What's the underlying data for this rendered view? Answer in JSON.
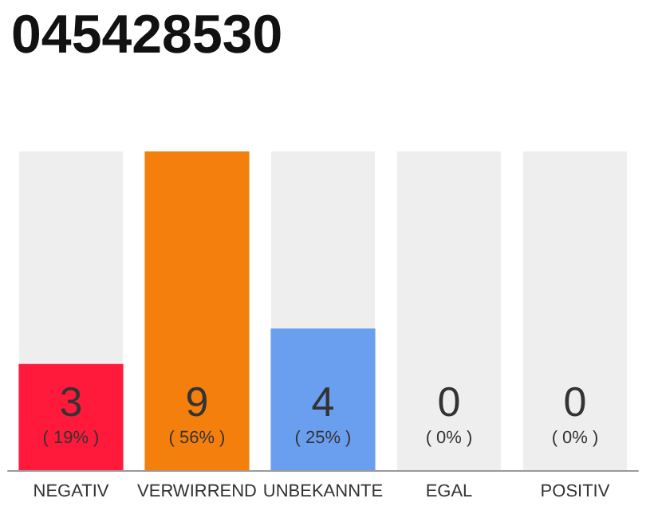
{
  "chart_data": {
    "type": "bar",
    "title": "045428530",
    "categories": [
      "NEGATIV",
      "VERWIRREND",
      "UNBEKANNTE",
      "EGAL",
      "POSITIV"
    ],
    "values": [
      3,
      9,
      4,
      0,
      0
    ],
    "colors": [
      "#ff1a3c",
      "#f57f0c",
      "#6a9ff0",
      "#bdbdbd",
      "#bdbdbd"
    ],
    "value_labels": [
      "3\n( 19% )",
      "9\n( 56% )",
      "4\n( 25% )",
      "0\n( 0% )",
      "0\n( 0% )"
    ],
    "ylim": [
      0,
      9
    ],
    "bands": [
      {
        "axis": "x",
        "from": "NEGATIV",
        "to": "NEGATIV",
        "color": "#eeeeee"
      },
      {
        "axis": "x",
        "from": "UNBEKANNTE",
        "to": "UNBEKANNTE",
        "color": "#eeeeee"
      },
      {
        "axis": "x",
        "from": "EGAL",
        "to": "EGAL",
        "color": "#eeeeee"
      },
      {
        "axis": "x",
        "from": "POSITIV",
        "to": "POSITIV",
        "color": "#eeeeee"
      }
    ]
  }
}
